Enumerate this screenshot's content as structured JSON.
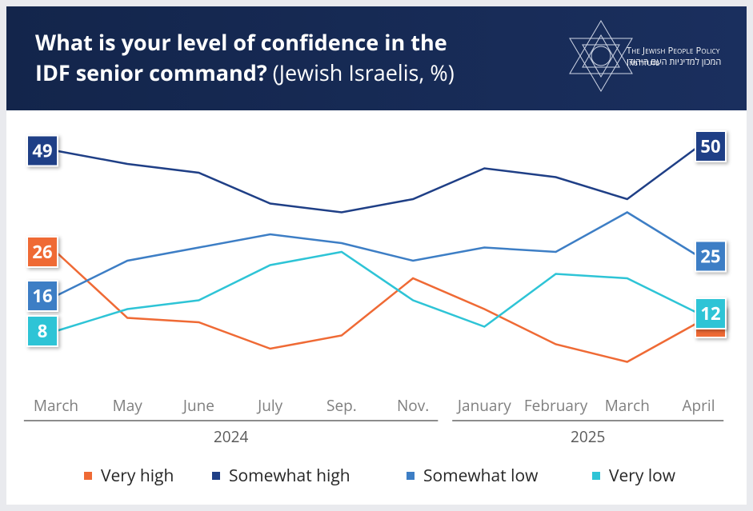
{
  "chart_data": {
    "type": "line",
    "title": "What is your level of confidence in the IDF senior command?",
    "subtitle": "(Jewish Israelis, %)",
    "organization": "The Jewish People Policy Institute",
    "organization_hebrew": "המכון למדיניות העם היהודי",
    "categories": [
      "March",
      "May",
      "June",
      "July",
      "Sep.",
      "Nov.",
      "January",
      "February",
      "March",
      "April"
    ],
    "years": [
      "2024",
      "2025"
    ],
    "ylim": [
      0,
      55
    ],
    "series": [
      {
        "name": "Very high",
        "color": "#ef6a35",
        "values": [
          26,
          11,
          10,
          4,
          7,
          20,
          13,
          5,
          1,
          10
        ]
      },
      {
        "name": "Somewhat high",
        "color": "#1f3f86",
        "values": [
          49,
          46,
          44,
          37,
          35,
          38,
          45,
          43,
          38,
          50
        ]
      },
      {
        "name": "Somewhat low",
        "color": "#3d7ec5",
        "values": [
          16,
          24,
          27,
          30,
          28,
          24,
          27,
          26,
          35,
          25
        ]
      },
      {
        "name": "Very low",
        "color": "#2ec4d6",
        "values": [
          8,
          13,
          15,
          23,
          26,
          15,
          9,
          21,
          20,
          12
        ]
      }
    ]
  }
}
